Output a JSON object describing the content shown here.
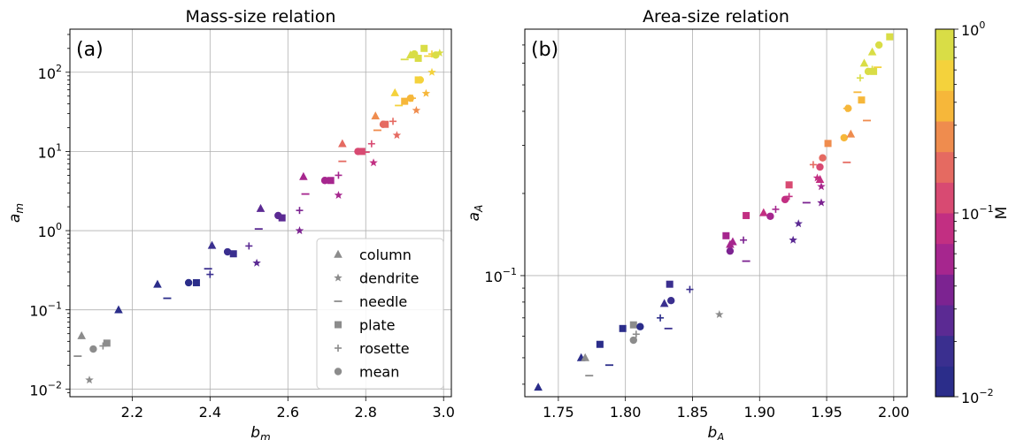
{
  "chart_data": [
    {
      "type": "scatter",
      "title": "Mass-size relation",
      "panel_label": "(a)",
      "xlabel": "b_m",
      "ylabel": "a_m",
      "xlim": [
        2.04,
        3.02
      ],
      "ylim": [
        0.008,
        350
      ],
      "yscale": "log",
      "grid": true,
      "x_ticks": [
        2.2,
        2.4,
        2.6,
        2.8,
        3.0
      ],
      "x_tick_labels": [
        "2.2",
        "2.4",
        "2.6",
        "2.8",
        "3.0"
      ],
      "y_ticks": [
        0.01,
        0.1,
        1,
        10,
        100
      ],
      "y_tick_labels": [
        "10",
        "10",
        "10",
        "10",
        "10"
      ],
      "y_tick_exponents": [
        "−2",
        "−1",
        "0",
        "1",
        "2"
      ],
      "legend_position": "lower-right",
      "legend": [
        {
          "label": "column",
          "marker": "triangle"
        },
        {
          "label": "dendrite",
          "marker": "star"
        },
        {
          "label": "needle",
          "marker": "dash"
        },
        {
          "label": "plate",
          "marker": "square"
        },
        {
          "label": "rosette",
          "marker": "plus"
        },
        {
          "label": "mean",
          "marker": "circle"
        }
      ],
      "points": [
        {
          "x": 2.07,
          "y": 0.047,
          "marker": "triangle",
          "M": null
        },
        {
          "x": 2.09,
          "y": 0.013,
          "marker": "star",
          "M": null
        },
        {
          "x": 2.06,
          "y": 0.026,
          "marker": "dash",
          "M": null
        },
        {
          "x": 2.135,
          "y": 0.038,
          "marker": "square",
          "M": null
        },
        {
          "x": 2.125,
          "y": 0.035,
          "marker": "plus",
          "M": null
        },
        {
          "x": 2.1,
          "y": 0.032,
          "marker": "circle",
          "M": null
        },
        {
          "x": 2.165,
          "y": 0.1,
          "marker": "triangle",
          "M": 0.01
        },
        {
          "x": 2.265,
          "y": 0.21,
          "marker": "triangle",
          "M": 0.013
        },
        {
          "x": 2.29,
          "y": 0.14,
          "marker": "dash",
          "M": 0.013
        },
        {
          "x": 2.345,
          "y": 0.22,
          "marker": "circle",
          "M": 0.013
        },
        {
          "x": 2.365,
          "y": 0.22,
          "marker": "square",
          "M": 0.013
        },
        {
          "x": 2.405,
          "y": 0.65,
          "marker": "triangle",
          "M": 0.02
        },
        {
          "x": 2.395,
          "y": 0.33,
          "marker": "dash",
          "M": 0.018
        },
        {
          "x": 2.4,
          "y": 0.28,
          "marker": "plus",
          "M": 0.018
        },
        {
          "x": 2.445,
          "y": 0.54,
          "marker": "circle",
          "M": 0.02
        },
        {
          "x": 2.46,
          "y": 0.51,
          "marker": "square",
          "M": 0.02
        },
        {
          "x": 2.5,
          "y": 0.64,
          "marker": "plus",
          "M": 0.022
        },
        {
          "x": 2.52,
          "y": 0.39,
          "marker": "star",
          "M": 0.022
        },
        {
          "x": 2.53,
          "y": 1.9,
          "marker": "triangle",
          "M": 0.03
        },
        {
          "x": 2.525,
          "y": 1.05,
          "marker": "dash",
          "M": 0.03
        },
        {
          "x": 2.575,
          "y": 1.55,
          "marker": "circle",
          "M": 0.03
        },
        {
          "x": 2.585,
          "y": 1.45,
          "marker": "square",
          "M": 0.03
        },
        {
          "x": 2.63,
          "y": 1.8,
          "marker": "plus",
          "M": 0.035
        },
        {
          "x": 2.63,
          "y": 1.0,
          "marker": "star",
          "M": 0.035
        },
        {
          "x": 2.64,
          "y": 4.8,
          "marker": "triangle",
          "M": 0.06
        },
        {
          "x": 2.645,
          "y": 2.9,
          "marker": "dash",
          "M": 0.06
        },
        {
          "x": 2.695,
          "y": 4.3,
          "marker": "circle",
          "M": 0.055
        },
        {
          "x": 2.71,
          "y": 4.3,
          "marker": "square",
          "M": 0.055
        },
        {
          "x": 2.73,
          "y": 5.0,
          "marker": "plus",
          "M": 0.05
        },
        {
          "x": 2.73,
          "y": 2.8,
          "marker": "star",
          "M": 0.05
        },
        {
          "x": 2.74,
          "y": 12.5,
          "marker": "triangle",
          "M": 0.15
        },
        {
          "x": 2.74,
          "y": 7.5,
          "marker": "dash",
          "M": 0.15
        },
        {
          "x": 2.78,
          "y": 10.0,
          "marker": "circle",
          "M": 0.12
        },
        {
          "x": 2.79,
          "y": 10.0,
          "marker": "square",
          "M": 0.12
        },
        {
          "x": 2.8,
          "y": 9.8,
          "marker": "dash",
          "M": 0.12
        },
        {
          "x": 2.815,
          "y": 12.5,
          "marker": "plus",
          "M": 0.1
        },
        {
          "x": 2.82,
          "y": 7.2,
          "marker": "star",
          "M": 0.08
        },
        {
          "x": 2.825,
          "y": 28.0,
          "marker": "triangle",
          "M": 0.3
        },
        {
          "x": 2.83,
          "y": 18.5,
          "marker": "dash",
          "M": 0.3
        },
        {
          "x": 2.845,
          "y": 22.0,
          "marker": "circle",
          "M": 0.2
        },
        {
          "x": 2.85,
          "y": 22.0,
          "marker": "square",
          "M": 0.2
        },
        {
          "x": 2.87,
          "y": 24.0,
          "marker": "plus",
          "M": 0.2
        },
        {
          "x": 2.88,
          "y": 16.0,
          "marker": "star",
          "M": 0.15
        },
        {
          "x": 2.875,
          "y": 55.0,
          "marker": "triangle",
          "M": 0.5
        },
        {
          "x": 2.885,
          "y": 38.0,
          "marker": "dash",
          "M": 0.5
        },
        {
          "x": 2.9,
          "y": 43.0,
          "marker": "square",
          "M": 0.4
        },
        {
          "x": 2.915,
          "y": 47.0,
          "marker": "circle",
          "M": 0.4
        },
        {
          "x": 2.92,
          "y": 47.0,
          "marker": "plus",
          "M": 0.4
        },
        {
          "x": 2.93,
          "y": 33.0,
          "marker": "star",
          "M": 0.3
        },
        {
          "x": 2.935,
          "y": 80.0,
          "marker": "square",
          "M": 0.5
        },
        {
          "x": 2.94,
          "y": 80.0,
          "marker": "circle",
          "M": 0.55
        },
        {
          "x": 2.955,
          "y": 54.0,
          "marker": "star",
          "M": 0.4
        },
        {
          "x": 2.9,
          "y": 145.0,
          "marker": "dash",
          "M": 0.95
        },
        {
          "x": 2.915,
          "y": 165.0,
          "marker": "triangle",
          "M": 0.9
        },
        {
          "x": 2.925,
          "y": 170.0,
          "marker": "circle",
          "M": 0.85
        },
        {
          "x": 2.935,
          "y": 150.0,
          "marker": "square",
          "M": 0.8
        },
        {
          "x": 2.95,
          "y": 200.0,
          "marker": "square",
          "M": 0.75
        },
        {
          "x": 2.96,
          "y": 160.0,
          "marker": "dash",
          "M": 0.6
        },
        {
          "x": 2.97,
          "y": 170.0,
          "marker": "plus",
          "M": 0.65
        },
        {
          "x": 2.98,
          "y": 165.0,
          "marker": "circle",
          "M": 0.7
        },
        {
          "x": 2.99,
          "y": 175.0,
          "marker": "star",
          "M": 0.7
        },
        {
          "x": 2.97,
          "y": 100.0,
          "marker": "star",
          "M": 0.6
        }
      ]
    },
    {
      "type": "scatter",
      "title": "Area-size relation",
      "panel_label": "(b)",
      "xlabel": "b_A",
      "ylabel": "a_A",
      "xlim": [
        1.725,
        2.01
      ],
      "ylim": [
        0.036,
        0.8
      ],
      "yscale": "log",
      "grid": true,
      "x_ticks": [
        1.75,
        1.8,
        1.85,
        1.9,
        1.95,
        2.0
      ],
      "x_tick_labels": [
        "1.75",
        "1.80",
        "1.85",
        "1.90",
        "1.95",
        "2.00"
      ],
      "y_ticks": [
        0.1
      ],
      "y_tick_labels": [
        "10"
      ],
      "y_tick_exponents": [
        "−1"
      ],
      "points": [
        {
          "x": 1.735,
          "y": 0.039,
          "marker": "triangle",
          "M": 0.01
        },
        {
          "x": 1.767,
          "y": 0.05,
          "marker": "triangle",
          "M": 0.011
        },
        {
          "x": 1.77,
          "y": 0.05,
          "marker": "triangle",
          "M": null
        },
        {
          "x": 1.773,
          "y": 0.043,
          "marker": "dash",
          "M": null
        },
        {
          "x": 1.781,
          "y": 0.056,
          "marker": "square",
          "M": 0.011
        },
        {
          "x": 1.788,
          "y": 0.047,
          "marker": "dash",
          "M": 0.011
        },
        {
          "x": 1.798,
          "y": 0.064,
          "marker": "square",
          "M": 0.012
        },
        {
          "x": 1.806,
          "y": 0.066,
          "marker": "square",
          "M": null
        },
        {
          "x": 1.808,
          "y": 0.061,
          "marker": "plus",
          "M": null
        },
        {
          "x": 1.806,
          "y": 0.058,
          "marker": "circle",
          "M": null
        },
        {
          "x": 1.811,
          "y": 0.065,
          "marker": "circle",
          "M": 0.012
        },
        {
          "x": 1.826,
          "y": 0.07,
          "marker": "plus",
          "M": 0.013
        },
        {
          "x": 1.829,
          "y": 0.079,
          "marker": "triangle",
          "M": 0.016
        },
        {
          "x": 1.833,
          "y": 0.093,
          "marker": "square",
          "M": 0.018
        },
        {
          "x": 1.834,
          "y": 0.081,
          "marker": "circle",
          "M": 0.016
        },
        {
          "x": 1.832,
          "y": 0.064,
          "marker": "dash",
          "M": 0.016
        },
        {
          "x": 1.848,
          "y": 0.089,
          "marker": "plus",
          "M": 0.016
        },
        {
          "x": 1.87,
          "y": 0.072,
          "marker": "star",
          "M": null
        },
        {
          "x": 1.875,
          "y": 0.14,
          "marker": "square",
          "M": 0.06
        },
        {
          "x": 1.878,
          "y": 0.123,
          "marker": "circle",
          "M": 0.04
        },
        {
          "x": 1.878,
          "y": 0.13,
          "marker": "triangle",
          "M": 0.05
        },
        {
          "x": 1.88,
          "y": 0.133,
          "marker": "triangle",
          "M": 0.05
        },
        {
          "x": 1.888,
          "y": 0.135,
          "marker": "plus",
          "M": 0.035
        },
        {
          "x": 1.89,
          "y": 0.113,
          "marker": "dash",
          "M": 0.035
        },
        {
          "x": 1.89,
          "y": 0.166,
          "marker": "square",
          "M": 0.08
        },
        {
          "x": 1.903,
          "y": 0.17,
          "marker": "triangle",
          "M": 0.07
        },
        {
          "x": 1.908,
          "y": 0.165,
          "marker": "circle",
          "M": 0.06
        },
        {
          "x": 1.912,
          "y": 0.175,
          "marker": "plus",
          "M": 0.05
        },
        {
          "x": 1.919,
          "y": 0.19,
          "marker": "circle",
          "M": 0.08
        },
        {
          "x": 1.922,
          "y": 0.215,
          "marker": "square",
          "M": 0.12
        },
        {
          "x": 1.922,
          "y": 0.195,
          "marker": "plus",
          "M": 0.09
        },
        {
          "x": 1.925,
          "y": 0.135,
          "marker": "star",
          "M": 0.03
        },
        {
          "x": 1.929,
          "y": 0.155,
          "marker": "star",
          "M": 0.03
        },
        {
          "x": 1.935,
          "y": 0.185,
          "marker": "dash",
          "M": 0.04
        },
        {
          "x": 1.94,
          "y": 0.255,
          "marker": "plus",
          "M": 0.15
        },
        {
          "x": 1.943,
          "y": 0.228,
          "marker": "star",
          "M": 0.07
        },
        {
          "x": 1.945,
          "y": 0.25,
          "marker": "circle",
          "M": 0.14
        },
        {
          "x": 1.945,
          "y": 0.225,
          "marker": "triangle",
          "M": 0.08
        },
        {
          "x": 1.946,
          "y": 0.212,
          "marker": "star",
          "M": 0.06
        },
        {
          "x": 1.946,
          "y": 0.185,
          "marker": "star",
          "M": 0.04
        },
        {
          "x": 1.947,
          "y": 0.27,
          "marker": "circle",
          "M": 0.16
        },
        {
          "x": 1.951,
          "y": 0.305,
          "marker": "square",
          "M": 0.3
        },
        {
          "x": 1.963,
          "y": 0.32,
          "marker": "circle",
          "M": 0.35
        },
        {
          "x": 1.965,
          "y": 0.26,
          "marker": "dash",
          "M": 0.2
        },
        {
          "x": 1.968,
          "y": 0.33,
          "marker": "triangle",
          "M": 0.3
        },
        {
          "x": 1.965,
          "y": 0.41,
          "marker": "plus",
          "M": 0.4
        },
        {
          "x": 1.966,
          "y": 0.41,
          "marker": "circle",
          "M": 0.45
        },
        {
          "x": 1.976,
          "y": 0.44,
          "marker": "square",
          "M": 0.4
        },
        {
          "x": 1.973,
          "y": 0.47,
          "marker": "dash",
          "M": 0.45
        },
        {
          "x": 1.98,
          "y": 0.37,
          "marker": "dash",
          "M": 0.3
        },
        {
          "x": 1.975,
          "y": 0.53,
          "marker": "plus",
          "M": 0.7
        },
        {
          "x": 1.981,
          "y": 0.56,
          "marker": "circle",
          "M": 0.7
        },
        {
          "x": 1.984,
          "y": 0.57,
          "marker": "plus",
          "M": 0.75
        },
        {
          "x": 1.985,
          "y": 0.56,
          "marker": "square",
          "M": 0.7
        },
        {
          "x": 1.988,
          "y": 0.58,
          "marker": "dash",
          "M": 0.6
        },
        {
          "x": 1.978,
          "y": 0.6,
          "marker": "triangle",
          "M": 0.9
        },
        {
          "x": 1.984,
          "y": 0.66,
          "marker": "triangle",
          "M": 0.92
        },
        {
          "x": 1.989,
          "y": 0.7,
          "marker": "circle",
          "M": 0.95
        },
        {
          "x": 1.997,
          "y": 0.75,
          "marker": "square",
          "M": 1.0
        }
      ]
    }
  ],
  "colorbar": {
    "label": "M",
    "scale": "log",
    "range": [
      0.01,
      1
    ],
    "tick_labels": [
      "10",
      "10",
      "10"
    ],
    "tick_exponents": [
      "−2",
      "−1",
      "0"
    ],
    "tick_values": [
      0.01,
      0.1,
      1
    ],
    "colors": [
      "#2b2d8a",
      "#3a2f8f",
      "#5b2a93",
      "#7c2391",
      "#a6268e",
      "#c22f82",
      "#d84a72",
      "#e56a61",
      "#ef8c4e",
      "#f6b73a",
      "#f4d23c",
      "#d9dd46"
    ],
    "missing_color": "#8c8c8c"
  }
}
